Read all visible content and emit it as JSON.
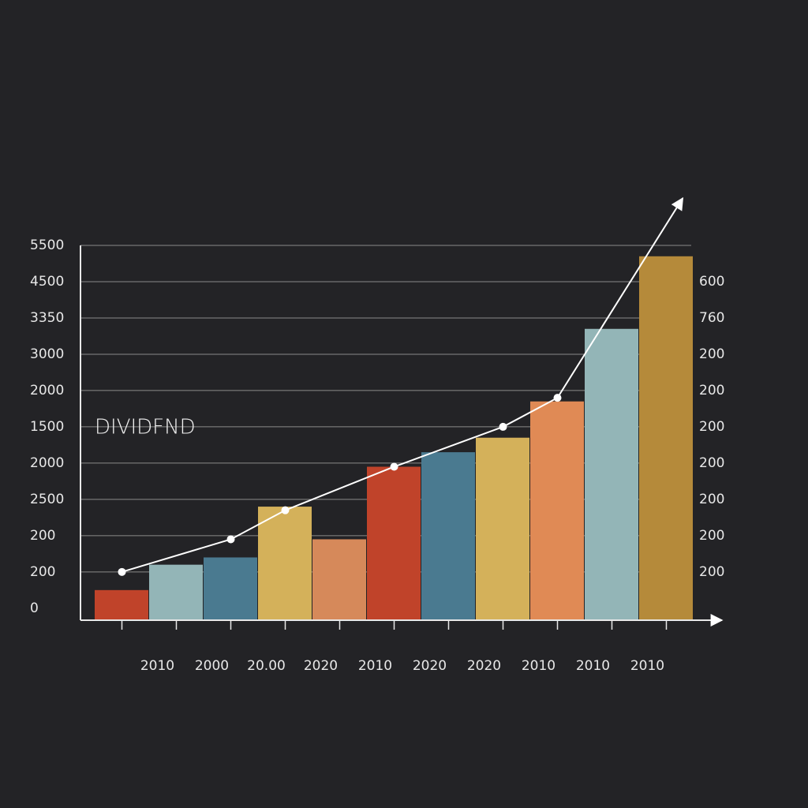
{
  "chart_data": {
    "type": "bar",
    "annotation": "DIVIDFND",
    "categories": [
      null,
      "2010",
      "2000",
      "20.00",
      "2020",
      "2010",
      "2020",
      "2020",
      "2010",
      "2010",
      "2010"
    ],
    "values": [
      0.5,
      1.2,
      1.4,
      2.8,
      1.9,
      3.9,
      4.3,
      4.7,
      5.7,
      7.7,
      9.7
    ],
    "colors": [
      "#c0432a",
      "#93b5b7",
      "#4a7a90",
      "#d4b15a",
      "#d6895a",
      "#c0432a",
      "#4a7a90",
      "#d4b15a",
      "#e08a55",
      "#93b5b7",
      "#b58a3a"
    ],
    "line": {
      "color": "#ffffff",
      "x": [
        0,
        2,
        3,
        5,
        7,
        8,
        10.3
      ],
      "values": [
        1.0,
        1.9,
        2.7,
        3.9,
        5.0,
        5.8,
        11.3
      ]
    },
    "ylim": [
      -0.33,
      10
    ],
    "yticks": [
      {
        "value": 0,
        "label": "0"
      },
      {
        "value": 1,
        "label": "200"
      },
      {
        "value": 2,
        "label": "200"
      },
      {
        "value": 3,
        "label": "2500"
      },
      {
        "value": 4,
        "label": "2000"
      },
      {
        "value": 5,
        "label": "1500"
      },
      {
        "value": 6,
        "label": "2000"
      },
      {
        "value": 7,
        "label": "3000"
      },
      {
        "value": 8,
        "label": "3350"
      },
      {
        "value": 9,
        "label": "4500"
      },
      {
        "value": 10,
        "label": "5500"
      }
    ],
    "y2lim": [
      -0.33,
      10
    ],
    "y2ticks": [
      {
        "value": 1,
        "label": "200"
      },
      {
        "value": 2,
        "label": "200"
      },
      {
        "value": 3,
        "label": "200"
      },
      {
        "value": 4,
        "label": "200"
      },
      {
        "value": 5,
        "label": "200"
      },
      {
        "value": 6,
        "label": "200"
      },
      {
        "value": 7,
        "label": "200"
      },
      {
        "value": 8,
        "label": "760"
      },
      {
        "value": 9,
        "label": "600"
      }
    ],
    "grid": true
  }
}
